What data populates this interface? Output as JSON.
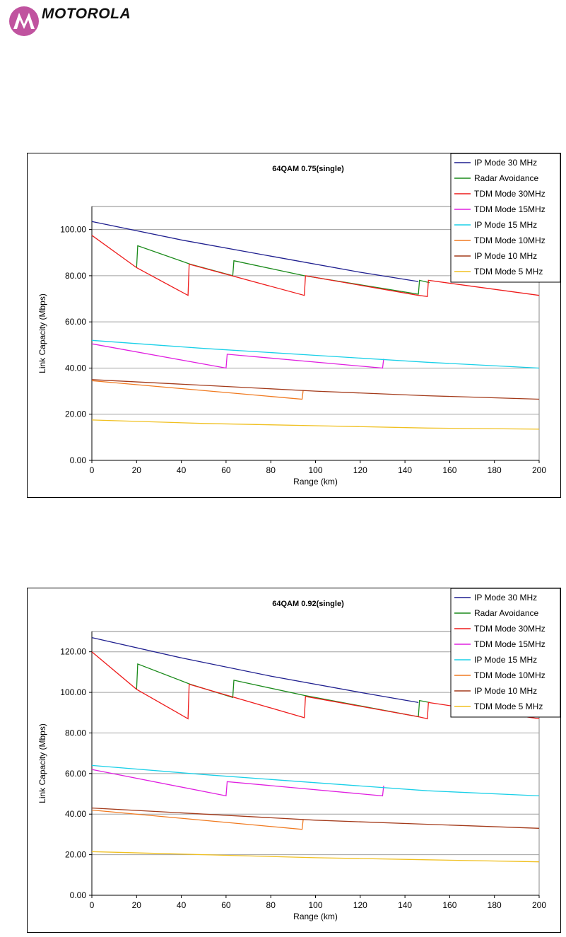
{
  "header": {
    "brand": "MOTOROLA"
  },
  "colors": {
    "IP Mode 30 MHz": "#1f1f8f",
    "Radar Avoidance": "#1a8a1a",
    "TDM Mode 30MHz": "#ee1c1c",
    "TDM Mode 15MHz": "#e020e0",
    "IP Mode 15 MHz": "#1ad0e8",
    "TDM Mode 10MHz": "#f07a20",
    "IP Mode 10 MHz": "#a33a1a",
    "TDM Mode 5 MHz": "#f0c020"
  },
  "chart_data": [
    {
      "type": "line",
      "title": "64QAM 0.75(single)",
      "xlabel": "Range (km)",
      "ylabel": "Link Capacity (Mbps)",
      "xlim": [
        0,
        200
      ],
      "ylim": [
        0,
        110
      ],
      "xticks": [
        "0",
        "20",
        "40",
        "60",
        "80",
        "100",
        "120",
        "140",
        "160",
        "180",
        "200"
      ],
      "yticks": [
        "0.00",
        "20.00",
        "40.00",
        "60.00",
        "80.00",
        "100.00"
      ],
      "grid": "horizontal",
      "legend": "top-right",
      "series": [
        {
          "name": "IP Mode 30 MHz",
          "points": [
            [
              0,
              103.5
            ],
            [
              40,
              95.5
            ],
            [
              80,
              88.5
            ],
            [
              120,
              81.5
            ],
            [
              146,
              77.5
            ]
          ]
        },
        {
          "name": "Radar Avoidance",
          "points": [
            [
              20,
              83.5
            ],
            [
              20.5,
              93
            ],
            [
              44,
              85
            ],
            [
              63,
              80
            ],
            [
              63.5,
              86.5
            ],
            [
              95,
              80
            ],
            [
              146,
              72
            ],
            [
              146.5,
              78
            ],
            [
              151,
              77
            ]
          ]
        },
        {
          "name": "TDM Mode 30MHz",
          "points": [
            [
              0,
              97.5
            ],
            [
              20,
              83.5
            ],
            [
              43,
              71.5
            ],
            [
              43.5,
              85
            ],
            [
              95,
              71.5
            ],
            [
              95.5,
              80
            ],
            [
              146,
              71.5
            ],
            [
              150,
              71
            ],
            [
              150.5,
              78
            ],
            [
              200,
              71.5
            ]
          ]
        },
        {
          "name": "TDM Mode 15MHz",
          "points": [
            [
              0,
              50.5
            ],
            [
              60,
              40
            ],
            [
              60.5,
              46
            ],
            [
              130,
              40
            ],
            [
              130.5,
              44
            ]
          ]
        },
        {
          "name": "IP Mode 15 MHz",
          "points": [
            [
              0,
              52
            ],
            [
              50,
              48.5
            ],
            [
              100,
              45.5
            ],
            [
              150,
              42.5
            ],
            [
              200,
              40
            ]
          ]
        },
        {
          "name": "TDM Mode 10MHz",
          "points": [
            [
              0,
              34.5
            ],
            [
              94,
              26.5
            ],
            [
              94.5,
              30.5
            ]
          ]
        },
        {
          "name": "IP Mode 10 MHz",
          "points": [
            [
              0,
              35
            ],
            [
              50,
              32.5
            ],
            [
              100,
              30
            ],
            [
              150,
              28
            ],
            [
              200,
              26.5
            ]
          ]
        },
        {
          "name": "TDM Mode 5 MHz",
          "points": [
            [
              0,
              17.5
            ],
            [
              50,
              16
            ],
            [
              100,
              15
            ],
            [
              150,
              14
            ],
            [
              200,
              13.5
            ]
          ]
        }
      ]
    },
    {
      "type": "line",
      "title": "64QAM 0.92(single)",
      "xlabel": "Range (km)",
      "ylabel": "Link Capacity (Mbps)",
      "xlim": [
        0,
        200
      ],
      "ylim": [
        0,
        130
      ],
      "xticks": [
        "0",
        "20",
        "40",
        "60",
        "80",
        "100",
        "120",
        "140",
        "160",
        "180",
        "200"
      ],
      "yticks": [
        "0.00",
        "20.00",
        "40.00",
        "60.00",
        "80.00",
        "100.00",
        "120.00"
      ],
      "grid": "horizontal",
      "legend": "top-right",
      "series": [
        {
          "name": "IP Mode 30 MHz",
          "points": [
            [
              0,
              127
            ],
            [
              40,
              117
            ],
            [
              80,
              108
            ],
            [
              120,
              100
            ],
            [
              146,
              95
            ]
          ]
        },
        {
          "name": "Radar Avoidance",
          "points": [
            [
              20,
              101.5
            ],
            [
              20.5,
              114
            ],
            [
              44,
              104
            ],
            [
              63,
              97.5
            ],
            [
              63.5,
              106
            ],
            [
              95,
              98.5
            ],
            [
              146,
              88
            ],
            [
              146.5,
              96
            ],
            [
              151,
              95
            ]
          ]
        },
        {
          "name": "TDM Mode 30MHz",
          "points": [
            [
              0,
              120
            ],
            [
              20,
              101.5
            ],
            [
              43,
              87
            ],
            [
              43.5,
              104
            ],
            [
              95,
              87.5
            ],
            [
              95.5,
              98
            ],
            [
              146,
              88
            ],
            [
              150,
              87
            ],
            [
              150.5,
              95
            ],
            [
              200,
              87
            ]
          ]
        },
        {
          "name": "TDM Mode 15MHz",
          "points": [
            [
              0,
              62
            ],
            [
              60,
              49
            ],
            [
              60.5,
              56
            ],
            [
              130,
              49
            ],
            [
              130.5,
              54
            ]
          ]
        },
        {
          "name": "IP Mode 15 MHz",
          "points": [
            [
              0,
              64
            ],
            [
              50,
              59.5
            ],
            [
              100,
              55.5
            ],
            [
              150,
              51.5
            ],
            [
              200,
              49
            ]
          ]
        },
        {
          "name": "TDM Mode 10MHz",
          "points": [
            [
              0,
              42
            ],
            [
              94,
              32.5
            ],
            [
              94.5,
              37.5
            ]
          ]
        },
        {
          "name": "IP Mode 10 MHz",
          "points": [
            [
              0,
              43
            ],
            [
              50,
              40
            ],
            [
              100,
              37
            ],
            [
              150,
              35
            ],
            [
              200,
              33
            ]
          ]
        },
        {
          "name": "TDM Mode 5 MHz",
          "points": [
            [
              0,
              21.5
            ],
            [
              50,
              20
            ],
            [
              100,
              18.5
            ],
            [
              150,
              17.5
            ],
            [
              200,
              16.5
            ]
          ]
        }
      ]
    }
  ]
}
